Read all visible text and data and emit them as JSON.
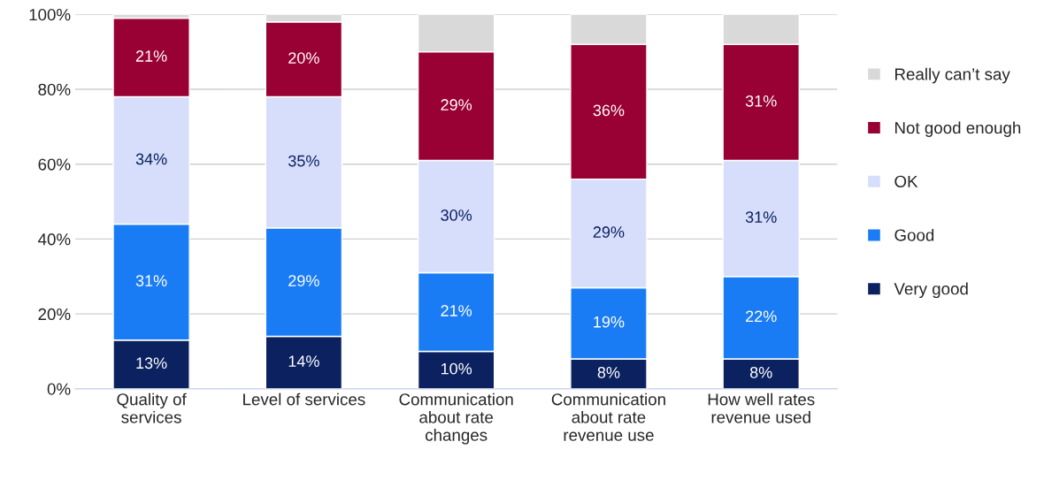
{
  "chart_data": {
    "type": "bar",
    "stacked": true,
    "categories": [
      "Quality of\nservices",
      "Level of services",
      "Communication\nabout rate\nchanges",
      "Communication\nabout rate\nrevenue use",
      "How well rates\nrevenue used"
    ],
    "series": [
      {
        "name": "Very good",
        "color": "#0b2160",
        "values": [
          13,
          14,
          10,
          8,
          8
        ],
        "value_labels": [
          "13%",
          "14%",
          "10%",
          "8%",
          "8%"
        ]
      },
      {
        "name": "Good",
        "color": "#1a7cf5",
        "values": [
          31,
          29,
          21,
          19,
          22
        ],
        "value_labels": [
          "31%",
          "29%",
          "21%",
          "19%",
          "22%"
        ]
      },
      {
        "name": "OK",
        "color": "#d6defb",
        "values": [
          34,
          35,
          30,
          29,
          31
        ],
        "value_labels": [
          "34%",
          "35%",
          "30%",
          "29%",
          "31%"
        ]
      },
      {
        "name": "Not good enough",
        "color": "#990033",
        "values": [
          21,
          20,
          29,
          36,
          31
        ],
        "value_labels": [
          "21%",
          "20%",
          "29%",
          "36%",
          "31%"
        ]
      },
      {
        "name": "Really can’t say",
        "color": "#d9d9d9",
        "values": [
          1,
          2,
          10,
          8,
          8
        ],
        "value_labels": [
          null,
          null,
          null,
          null,
          null
        ]
      }
    ],
    "ylim": [
      0,
      100
    ],
    "yticks": [
      {
        "value": 0,
        "label": "0%"
      },
      {
        "value": 20,
        "label": "20%"
      },
      {
        "value": 40,
        "label": "40%"
      },
      {
        "value": 60,
        "label": "60%"
      },
      {
        "value": 80,
        "label": "80%"
      },
      {
        "value": 100,
        "label": "100%"
      }
    ],
    "grid": "y",
    "legend": "right"
  }
}
